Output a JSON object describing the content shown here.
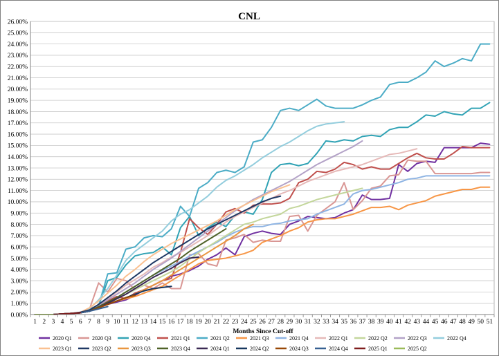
{
  "chart_data": {
    "type": "line",
    "title": "CNL",
    "xlabel": "Months Since Cut-off",
    "ylabel": "",
    "xlim": [
      1,
      51
    ],
    "ylim": [
      0,
      26
    ],
    "y_tick_step": 1,
    "y_tick_format": "percent_2dp",
    "grid": true,
    "legend_position": "bottom",
    "x": [
      1,
      2,
      3,
      4,
      5,
      6,
      7,
      8,
      9,
      10,
      11,
      12,
      13,
      14,
      15,
      16,
      17,
      18,
      19,
      20,
      21,
      22,
      23,
      24,
      25,
      26,
      27,
      28,
      29,
      30,
      31,
      32,
      33,
      34,
      35,
      36,
      37,
      38,
      39,
      40,
      41,
      42,
      43,
      44,
      45,
      46,
      47,
      48,
      49,
      50,
      51
    ],
    "series": [
      {
        "name": "2020 Q1",
        "color": "#7030a0",
        "values": [
          0,
          0,
          0,
          0.05,
          0.1,
          0.15,
          0.3,
          0.6,
          0.9,
          1.1,
          1.3,
          1.7,
          2.2,
          2.6,
          3.0,
          3.4,
          3.6,
          3.9,
          4.3,
          4.9,
          5.3,
          5.9,
          5.3,
          6.9,
          7.2,
          7.4,
          7.2,
          7.1,
          8.0,
          8.3,
          8.7,
          8.6,
          8.5,
          8.6,
          9.0,
          9.3,
          10.6,
          10.2,
          10.2,
          10.3,
          13.3,
          12.7,
          13.4,
          13.6,
          13.5,
          14.8,
          14.8,
          14.8,
          14.8,
          15.2,
          15.1
        ]
      },
      {
        "name": "2020 Q3",
        "color": "#d99694",
        "values": [
          0,
          0,
          0,
          0.05,
          0.1,
          0.2,
          0.5,
          2.8,
          2.0,
          3.2,
          3.0,
          2.2,
          2.6,
          2.3,
          2.8,
          2.3,
          2.3,
          5.3,
          5.4,
          4.5,
          4.3,
          6.6,
          6.8,
          7.1,
          6.4,
          6.6,
          6.5,
          6.5,
          8.7,
          8.8,
          7.4,
          8.8,
          9.4,
          10.0,
          11.7,
          9.3,
          10.1,
          11.2,
          11.4,
          12.3,
          12.4,
          13.7,
          13.6,
          13.6,
          12.5,
          12.5,
          12.5,
          12.5,
          12.5,
          12.6,
          12.6
        ]
      },
      {
        "name": "2020 Q4",
        "color": "#31a3b5",
        "values": [
          0,
          0,
          0,
          0.05,
          0.1,
          0.15,
          0.3,
          0.8,
          3.0,
          3.3,
          4.4,
          5.2,
          5.4,
          5.5,
          6.0,
          5.3,
          7.7,
          8.7,
          7.0,
          7.7,
          8.2,
          7.8,
          8.8,
          9.1,
          8.9,
          10.2,
          12.6,
          13.3,
          13.4,
          13.2,
          13.4,
          14.3,
          15.4,
          15.3,
          15.5,
          15.4,
          15.8,
          15.9,
          15.8,
          16.4,
          16.6,
          16.6,
          17.1,
          17.7,
          17.6,
          18.0,
          17.8,
          17.7,
          18.3,
          18.3,
          18.8
        ]
      },
      {
        "name": "2021 Q1",
        "color": "#c0504d",
        "values": [
          0,
          0,
          0,
          0.05,
          0.1,
          0.15,
          0.5,
          0.8,
          1.2,
          1.6,
          1.4,
          1.9,
          2.2,
          2.6,
          3.0,
          3.2,
          5.5,
          8.5,
          7.7,
          7.1,
          8.0,
          9.1,
          9.4,
          9.0,
          9.7,
          9.8,
          9.8,
          9.9,
          10.3,
          11.7,
          12.0,
          12.7,
          12.6,
          12.9,
          13.5,
          13.3,
          12.9,
          13.1,
          12.9,
          12.9,
          13.4,
          13.9,
          14.3,
          13.9,
          13.8,
          13.8,
          14.3,
          14.9,
          14.8,
          14.8,
          14.8
        ]
      },
      {
        "name": "2021 Q2",
        "color": "#4bacc6",
        "values": [
          0,
          0,
          0,
          0.05,
          0.1,
          0.15,
          0.3,
          0.8,
          3.6,
          3.7,
          5.8,
          6.0,
          6.8,
          7.0,
          6.9,
          7.6,
          9.6,
          8.7,
          11.2,
          11.7,
          12.6,
          12.8,
          12.6,
          13.1,
          15.3,
          15.5,
          16.6,
          18.1,
          18.3,
          18.1,
          18.6,
          19.1,
          18.5,
          18.3,
          18.3,
          18.3,
          18.6,
          19.0,
          19.3,
          20.4,
          20.6,
          20.6,
          21.0,
          21.5,
          22.5,
          22.0,
          22.3,
          22.7,
          22.5,
          24.0,
          24.0
        ]
      },
      {
        "name": "2021 Q3",
        "color": "#f79646",
        "values": [
          0,
          0,
          0,
          0.05,
          0.1,
          0.15,
          0.3,
          0.6,
          0.9,
          1.2,
          1.4,
          1.6,
          1.9,
          2.2,
          2.5,
          3.0,
          3.5,
          4.0,
          4.5,
          4.8,
          4.9,
          5.0,
          5.2,
          5.4,
          5.7,
          6.4,
          6.7,
          7.0,
          7.4,
          7.7,
          8.2,
          8.4,
          8.5,
          8.5,
          8.7,
          8.9,
          9.2,
          9.5,
          9.5,
          9.6,
          9.3,
          9.7,
          9.9,
          10.1,
          10.5,
          10.7,
          10.9,
          11.1,
          11.1,
          11.3,
          11.3
        ]
      },
      {
        "name": "2021 Q4",
        "color": "#8eb4e3",
        "values": [
          0,
          0,
          0,
          0.05,
          0.1,
          0.15,
          0.3,
          0.6,
          1.0,
          1.5,
          2.0,
          2.5,
          3.0,
          3.5,
          3.9,
          4.3,
          4.7,
          5.2,
          5.6,
          6.0,
          6.4,
          6.9,
          7.3,
          7.6,
          7.8,
          7.8,
          8.0,
          8.1,
          8.3,
          8.4,
          8.5,
          8.9,
          9.2,
          9.5,
          9.8,
          10.7,
          11.0,
          11.1,
          11.3,
          11.5,
          11.7,
          12.0,
          12.1,
          12.3,
          12.3,
          12.3,
          12.3,
          12.3,
          12.3,
          12.3,
          12.3
        ]
      },
      {
        "name": "2022 Q1",
        "color": "#e6b9b8",
        "values": [
          0,
          0,
          0,
          0.05,
          0.1,
          0.2,
          0.4,
          0.9,
          1.4,
          2.0,
          2.6,
          3.1,
          3.6,
          4.2,
          4.6,
          5.1,
          5.5,
          6.0,
          6.5,
          7.0,
          7.6,
          8.2,
          8.7,
          9.1,
          9.5,
          9.9,
          10.3,
          10.7,
          11.0,
          11.4,
          11.8,
          12.1,
          12.4,
          12.7,
          12.9,
          13.1,
          13.3,
          13.6,
          13.9,
          14.2,
          14.3,
          14.5,
          14.7,
          null,
          null,
          null,
          null,
          null,
          null,
          null,
          null
        ]
      },
      {
        "name": "2022 Q2",
        "color": "#c3d69b",
        "values": [
          0,
          0,
          0,
          0.05,
          0.1,
          0.15,
          0.3,
          0.6,
          1.0,
          1.4,
          1.8,
          2.2,
          2.6,
          3.0,
          3.4,
          3.8,
          4.3,
          4.9,
          5.5,
          6.0,
          6.5,
          7.0,
          7.5,
          8.0,
          8.2,
          8.5,
          8.7,
          8.9,
          9.4,
          9.6,
          9.9,
          10.2,
          10.4,
          10.6,
          10.8,
          11.0,
          11.2,
          null,
          null,
          null,
          null,
          null,
          null,
          null,
          null,
          null,
          null,
          null,
          null,
          null,
          null
        ]
      },
      {
        "name": "2022 Q3",
        "color": "#b3a2c7",
        "values": [
          0,
          0,
          0,
          0.05,
          0.1,
          0.15,
          0.4,
          0.8,
          1.3,
          1.8,
          2.3,
          2.8,
          3.4,
          4.0,
          4.5,
          5.0,
          5.6,
          6.2,
          6.8,
          7.4,
          8.0,
          8.6,
          9.2,
          9.7,
          10.2,
          10.6,
          11.0,
          11.4,
          11.8,
          12.3,
          12.8,
          13.3,
          13.7,
          14.1,
          14.5,
          14.9,
          15.4,
          null,
          null,
          null,
          null,
          null,
          null,
          null,
          null,
          null,
          null,
          null,
          null,
          null,
          null
        ]
      },
      {
        "name": "2022 Q4",
        "color": "#93cddd",
        "values": [
          0,
          0,
          0,
          0.05,
          0.1,
          0.2,
          0.5,
          1.3,
          2.3,
          3.5,
          4.8,
          5.6,
          6.2,
          6.8,
          7.4,
          8.3,
          8.9,
          9.3,
          9.9,
          10.5,
          11.3,
          11.9,
          12.3,
          12.8,
          13.3,
          13.9,
          14.4,
          14.9,
          15.3,
          15.8,
          16.3,
          16.7,
          16.9,
          17.0,
          17.1,
          null,
          null,
          null,
          null,
          null,
          null,
          null,
          null,
          null,
          null,
          null,
          null,
          null,
          null,
          null,
          null
        ]
      },
      {
        "name": "2023 Q1",
        "color": "#fac090",
        "values": [
          0,
          0,
          0,
          0.05,
          0.1,
          0.2,
          0.6,
          1.2,
          1.9,
          2.6,
          3.4,
          4.0,
          4.7,
          5.3,
          5.8,
          6.3,
          6.7,
          7.1,
          7.5,
          7.9,
          8.3,
          8.8,
          9.3,
          9.7,
          10.1,
          10.5,
          10.9,
          11.2,
          11.5,
          null,
          null,
          null,
          null,
          null,
          null,
          null,
          null,
          null,
          null,
          null,
          null,
          null,
          null,
          null,
          null,
          null,
          null,
          null,
          null,
          null,
          null
        ]
      },
      {
        "name": "2023 Q2",
        "color": "#1f3864",
        "values": [
          0,
          0,
          0,
          0.05,
          0.1,
          0.2,
          0.4,
          0.9,
          1.5,
          2.1,
          2.8,
          3.4,
          4.0,
          4.6,
          5.1,
          5.6,
          6.1,
          6.6,
          7.1,
          7.6,
          8.0,
          8.4,
          8.8,
          9.2,
          9.6,
          10.0,
          10.3,
          10.5,
          null,
          null,
          null,
          null,
          null,
          null,
          null,
          null,
          null,
          null,
          null,
          null,
          null,
          null,
          null,
          null,
          null,
          null,
          null,
          null,
          null,
          null,
          null
        ]
      },
      {
        "name": "2023 Q3",
        "color": "#e9963f",
        "values": [
          0,
          0,
          0,
          0.05,
          0.1,
          0.15,
          0.3,
          0.6,
          0.9,
          1.2,
          1.5,
          1.8,
          2.2,
          2.6,
          3.0,
          3.5,
          4.0,
          4.5,
          5.0,
          5.5,
          6.0,
          6.5,
          7.0,
          7.6,
          8.0,
          null,
          null,
          null,
          null,
          null,
          null,
          null,
          null,
          null,
          null,
          null,
          null,
          null,
          null,
          null,
          null,
          null,
          null,
          null,
          null,
          null,
          null,
          null,
          null,
          null,
          null
        ]
      },
      {
        "name": "2023 Q4",
        "color": "#4f6228",
        "values": [
          0,
          0,
          0,
          0.05,
          0.1,
          0.15,
          0.3,
          0.7,
          1.1,
          1.5,
          2.0,
          2.5,
          3.0,
          3.5,
          4.0,
          4.5,
          5.0,
          5.6,
          6.1,
          6.6,
          7.1,
          7.6,
          null,
          null,
          null,
          null,
          null,
          null,
          null,
          null,
          null,
          null,
          null,
          null,
          null,
          null,
          null,
          null,
          null,
          null,
          null,
          null,
          null,
          null,
          null,
          null,
          null,
          null,
          null,
          null,
          null
        ]
      },
      {
        "name": "2024 Q1",
        "color": "#3b2a54",
        "values": [
          0,
          0,
          0,
          0.05,
          0.1,
          0.15,
          0.3,
          0.6,
          1.0,
          1.4,
          1.8,
          2.3,
          2.8,
          3.3,
          3.7,
          4.1,
          4.6,
          5.0,
          5.1,
          null,
          null,
          null,
          null,
          null,
          null,
          null,
          null,
          null,
          null,
          null,
          null,
          null,
          null,
          null,
          null,
          null,
          null,
          null,
          null,
          null,
          null,
          null,
          null,
          null,
          null,
          null,
          null,
          null,
          null,
          null,
          null
        ]
      },
      {
        "name": "2024 Q2",
        "color": "#17375e",
        "values": [
          0,
          0,
          0,
          0.05,
          0.1,
          0.15,
          0.3,
          0.6,
          0.9,
          1.2,
          1.5,
          1.8,
          2.1,
          2.3,
          2.4,
          2.5,
          null,
          null,
          null,
          null,
          null,
          null,
          null,
          null,
          null,
          null,
          null,
          null,
          null,
          null,
          null,
          null,
          null,
          null,
          null,
          null,
          null,
          null,
          null,
          null,
          null,
          null,
          null,
          null,
          null,
          null,
          null,
          null,
          null,
          null,
          null
        ]
      },
      {
        "name": "2024 Q3",
        "color": "#984807",
        "values": [
          0,
          0,
          0,
          0.05,
          0.1,
          0.15,
          0.3,
          0.6,
          0.9,
          1.2,
          1.5,
          1.7,
          null,
          null,
          null,
          null,
          null,
          null,
          null,
          null,
          null,
          null,
          null,
          null,
          null,
          null,
          null,
          null,
          null,
          null,
          null,
          null,
          null,
          null,
          null,
          null,
          null,
          null,
          null,
          null,
          null,
          null,
          null,
          null,
          null,
          null,
          null,
          null,
          null,
          null,
          null
        ]
      },
      {
        "name": "2024 Q4",
        "color": "#376092",
        "values": [
          0,
          0,
          0,
          0.05,
          0.1,
          0.15,
          0.3,
          0.5,
          0.7,
          null,
          null,
          null,
          null,
          null,
          null,
          null,
          null,
          null,
          null,
          null,
          null,
          null,
          null,
          null,
          null,
          null,
          null,
          null,
          null,
          null,
          null,
          null,
          null,
          null,
          null,
          null,
          null,
          null,
          null,
          null,
          null,
          null,
          null,
          null,
          null,
          null,
          null,
          null,
          null,
          null,
          null
        ]
      },
      {
        "name": "2025 Q1",
        "color": "#7f1d1d",
        "values": [
          0,
          0,
          0,
          0.05,
          0.1,
          0.15,
          null,
          null,
          null,
          null,
          null,
          null,
          null,
          null,
          null,
          null,
          null,
          null,
          null,
          null,
          null,
          null,
          null,
          null,
          null,
          null,
          null,
          null,
          null,
          null,
          null,
          null,
          null,
          null,
          null,
          null,
          null,
          null,
          null,
          null,
          null,
          null,
          null,
          null,
          null,
          null,
          null,
          null,
          null,
          null,
          null
        ]
      },
      {
        "name": "2025 Q2",
        "color": "#9bbb59",
        "values": [
          0,
          0,
          0,
          null,
          null,
          null,
          null,
          null,
          null,
          null,
          null,
          null,
          null,
          null,
          null,
          null,
          null,
          null,
          null,
          null,
          null,
          null,
          null,
          null,
          null,
          null,
          null,
          null,
          null,
          null,
          null,
          null,
          null,
          null,
          null,
          null,
          null,
          null,
          null,
          null,
          null,
          null,
          null,
          null,
          null,
          null,
          null,
          null,
          null,
          null,
          null
        ]
      }
    ]
  }
}
